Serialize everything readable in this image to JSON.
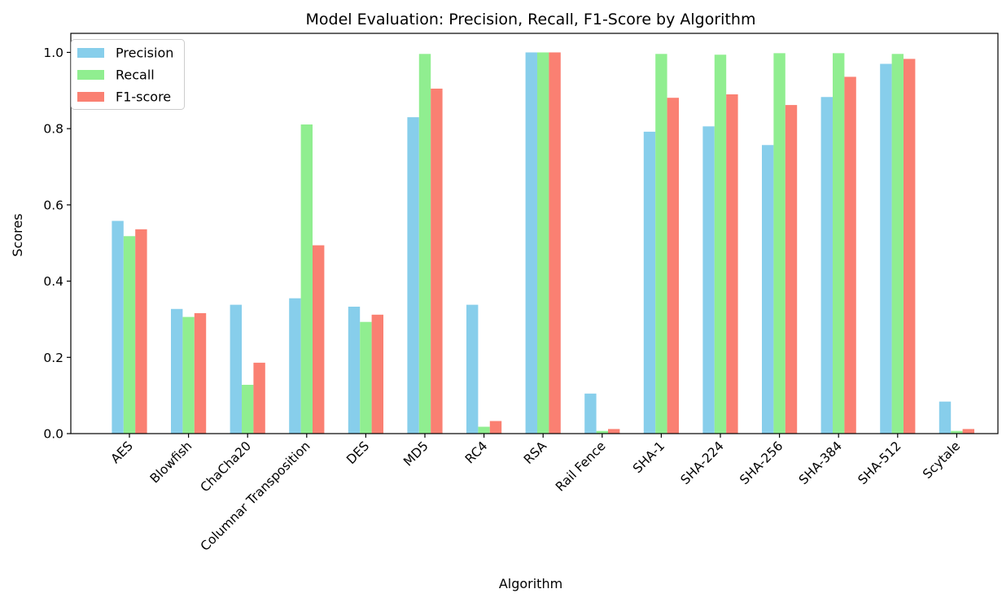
{
  "chart_data": {
    "type": "bar",
    "title": "Model Evaluation: Precision, Recall, F1-Score by Algorithm",
    "xlabel": "Algorithm",
    "ylabel": "Scores",
    "ylim": [
      0,
      1.05
    ],
    "yticks": [
      "0.0",
      "0.2",
      "0.4",
      "0.6",
      "0.8",
      "1.0"
    ],
    "ytick_values": [
      0,
      0.2,
      0.4,
      0.6,
      0.8,
      1.0
    ],
    "grid": false,
    "legend_position": "top-left",
    "categories": [
      "AES",
      "Blowfish",
      "ChaCha20",
      "Columnar Transposition",
      "DES",
      "MD5",
      "RC4",
      "RSA",
      "Rail Fence",
      "SHA-1",
      "SHA-224",
      "SHA-256",
      "SHA-384",
      "SHA-512",
      "Scytale"
    ],
    "series": [
      {
        "name": "Precision",
        "color": "#87ceeb",
        "values": [
          0.558,
          0.327,
          0.338,
          0.355,
          0.333,
          0.83,
          0.338,
          1.0,
          0.105,
          0.792,
          0.806,
          0.757,
          0.883,
          0.97,
          0.084
        ]
      },
      {
        "name": "Recall",
        "color": "#90ee90",
        "values": [
          0.518,
          0.306,
          0.128,
          0.811,
          0.293,
          0.996,
          0.018,
          1.0,
          0.007,
          0.996,
          0.994,
          0.998,
          0.998,
          0.996,
          0.007
        ]
      },
      {
        "name": "F1-score",
        "color": "#fa8072",
        "values": [
          0.536,
          0.316,
          0.186,
          0.494,
          0.312,
          0.905,
          0.033,
          1.0,
          0.012,
          0.881,
          0.89,
          0.862,
          0.936,
          0.983,
          0.012
        ]
      }
    ]
  }
}
